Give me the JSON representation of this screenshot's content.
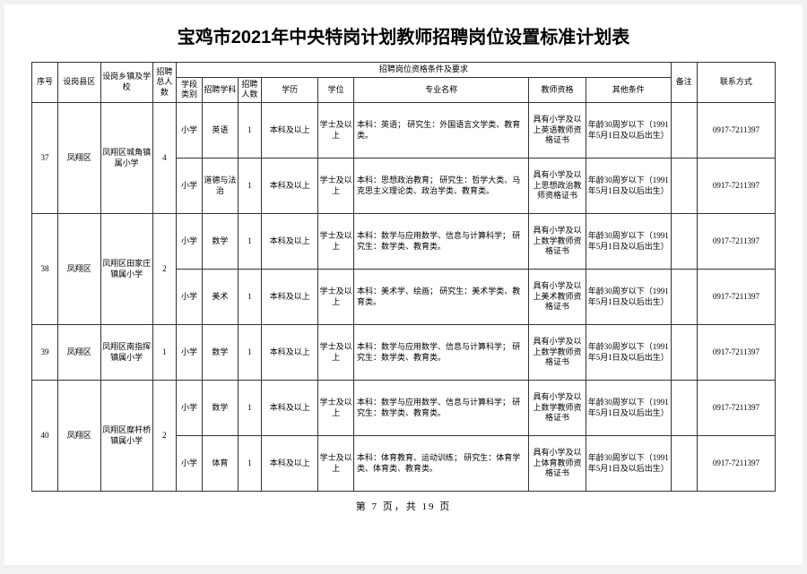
{
  "title": "宝鸡市2021年中央特岗计划教师招聘岗位设置标准计划表",
  "headers": {
    "seq": "序号",
    "county": "设岗县区",
    "school": "设岗乡镇及学校",
    "total": "招聘总人数",
    "qualGroup": "招聘岗位资格条件及要求",
    "stage": "学段类别",
    "subject": "招聘学科",
    "count": "招聘人数",
    "edu": "学历",
    "degree": "学位",
    "major": "专业名称",
    "cert": "教师资格",
    "other": "其他条件",
    "remark": "备注",
    "contact": "联系方式"
  },
  "cols": {
    "seq": 22,
    "county": 36,
    "school": 44,
    "total": 20,
    "stage": 22,
    "subject": 30,
    "count": 20,
    "edu": 48,
    "degree": 30,
    "major": 148,
    "cert": 48,
    "other": 72,
    "remark": 22,
    "contact": 66
  },
  "rows": [
    {
      "seq": "37",
      "county": "凤翔区",
      "school": "凤翔区城角镇属小学",
      "total": "4",
      "stage": "小学",
      "subject": "英语",
      "count": "1",
      "edu": "本科及以上",
      "degree": "学士及以上",
      "major": "本科：英语；\n研究生：外国语言文学类、教育类。",
      "cert": "具有小学及以上英语教师资格证书",
      "other": "年龄30周岁以下（1991年5月1日及以后出生）",
      "remark": "",
      "contact": "0917-7211397",
      "schoolSpan": 2,
      "seqSpan": 2
    },
    {
      "stage": "小学",
      "subject": "道德与法治",
      "count": "1",
      "edu": "本科及以上",
      "degree": "学士及以上",
      "major": "本科：思想政治教育；\n研究生：哲学大类、马克思主义理论类、政治学类、教育类。",
      "cert": "具有小学及以上思想政治教师资格证书",
      "other": "年龄30周岁以下（1991年5月1日及以后出生）",
      "remark": "",
      "contact": "0917-7211397"
    },
    {
      "seq": "38",
      "county": "凤翔区",
      "school": "凤翔区田家庄镇属小学",
      "total": "2",
      "stage": "小学",
      "subject": "数学",
      "count": "1",
      "edu": "本科及以上",
      "degree": "学士及以上",
      "major": "本科：数学与应用数学、信息与计算科学；\n研究生：数学类、教育类。",
      "cert": "具有小学及以上数学教师资格证书",
      "other": "年龄30周岁以下（1991年5月1日及以后出生）",
      "remark": "",
      "contact": "0917-7211397",
      "schoolSpan": 2,
      "seqSpan": 2
    },
    {
      "stage": "小学",
      "subject": "美术",
      "count": "1",
      "edu": "本科及以上",
      "degree": "学士及以上",
      "major": "本科：美术学、绘画；\n研究生：美术学类、教育类。",
      "cert": "具有小学及以上美术教师资格证书",
      "other": "年龄30周岁以下（1991年5月1日及以后出生）",
      "remark": "",
      "contact": "0917-7211397"
    },
    {
      "seq": "39",
      "county": "凤翔区",
      "school": "凤翔区南指挥镇属小学",
      "total": "1",
      "stage": "小学",
      "subject": "数学",
      "count": "1",
      "edu": "本科及以上",
      "degree": "学士及以上",
      "major": "本科：数学与应用数学、信息与计算科学；\n研究生：数学类、教育类。",
      "cert": "具有小学及以上数学教师资格证书",
      "other": "年龄30周岁以下（1991年5月1日及以后出生）",
      "remark": "",
      "contact": "0917-7211397",
      "schoolSpan": 1,
      "seqSpan": 1
    },
    {
      "seq": "40",
      "county": "凤翔区",
      "school": "凤翔区糜杆桥镇属小学",
      "total": "2",
      "stage": "小学",
      "subject": "数学",
      "count": "1",
      "edu": "本科及以上",
      "degree": "学士及以上",
      "major": "本科：数学与应用数学、信息与计算科学；\n研究生：数学类、教育类。",
      "cert": "具有小学及以上数学教师资格证书",
      "other": "年龄30周岁以下（1991年5月1日及以后出生）",
      "remark": "",
      "contact": "0917-7211397",
      "schoolSpan": 2,
      "seqSpan": 2
    },
    {
      "stage": "小学",
      "subject": "体育",
      "count": "1",
      "edu": "本科及以上",
      "degree": "学士及以上",
      "major": "本科：体育教育、运动训练；\n研究生：体育学类、体育类、教育类。",
      "cert": "具有小学及以上体育教师资格证书",
      "other": "年龄30周岁以下（1991年5月1日及以后出生）",
      "remark": "",
      "contact": "0917-7211397"
    }
  ],
  "pageNum": "第 7 页，共 19 页"
}
